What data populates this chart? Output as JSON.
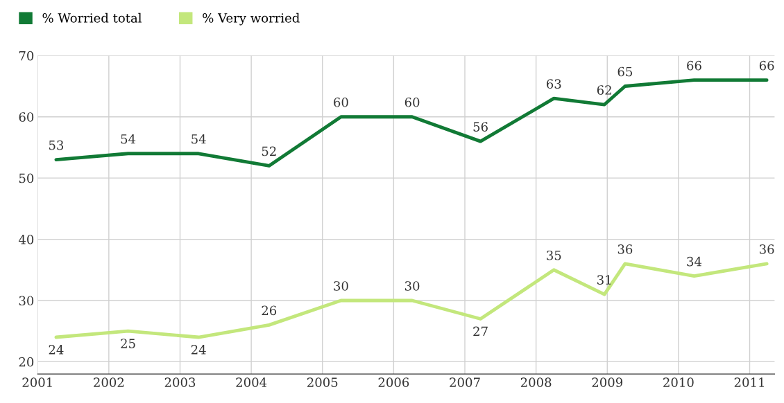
{
  "chart_data": {
    "type": "line",
    "series": [
      {
        "name": "% Worried total",
        "color": "#117a35",
        "x": [
          2001.26,
          2002.27,
          2003.26,
          2004.25,
          2005.26,
          2006.26,
          2007.22,
          2008.25,
          2008.96,
          2009.25,
          2010.22,
          2011.24
        ],
        "values": [
          53,
          54,
          54,
          52,
          60,
          60,
          56,
          63,
          62,
          65,
          66,
          66
        ]
      },
      {
        "name": "% Very worried",
        "color": "#c3e77c",
        "x": [
          2001.26,
          2002.27,
          2003.26,
          2004.25,
          2005.26,
          2006.26,
          2007.22,
          2008.25,
          2008.96,
          2009.25,
          2010.22,
          2011.24
        ],
        "values": [
          24,
          25,
          24,
          26,
          30,
          30,
          27,
          35,
          31,
          36,
          34,
          36
        ]
      }
    ],
    "xlim": [
      2001,
      2011.35
    ],
    "xticks": [
      2001,
      2002,
      2003,
      2004,
      2005,
      2006,
      2007,
      2008,
      2009,
      2010,
      2011
    ],
    "ylim": [
      18,
      70
    ],
    "yticks": [
      20,
      30,
      40,
      50,
      60,
      70
    ],
    "grid": true,
    "legend": "top left",
    "data_labels": true,
    "marker": "none",
    "line_style": "solid"
  }
}
